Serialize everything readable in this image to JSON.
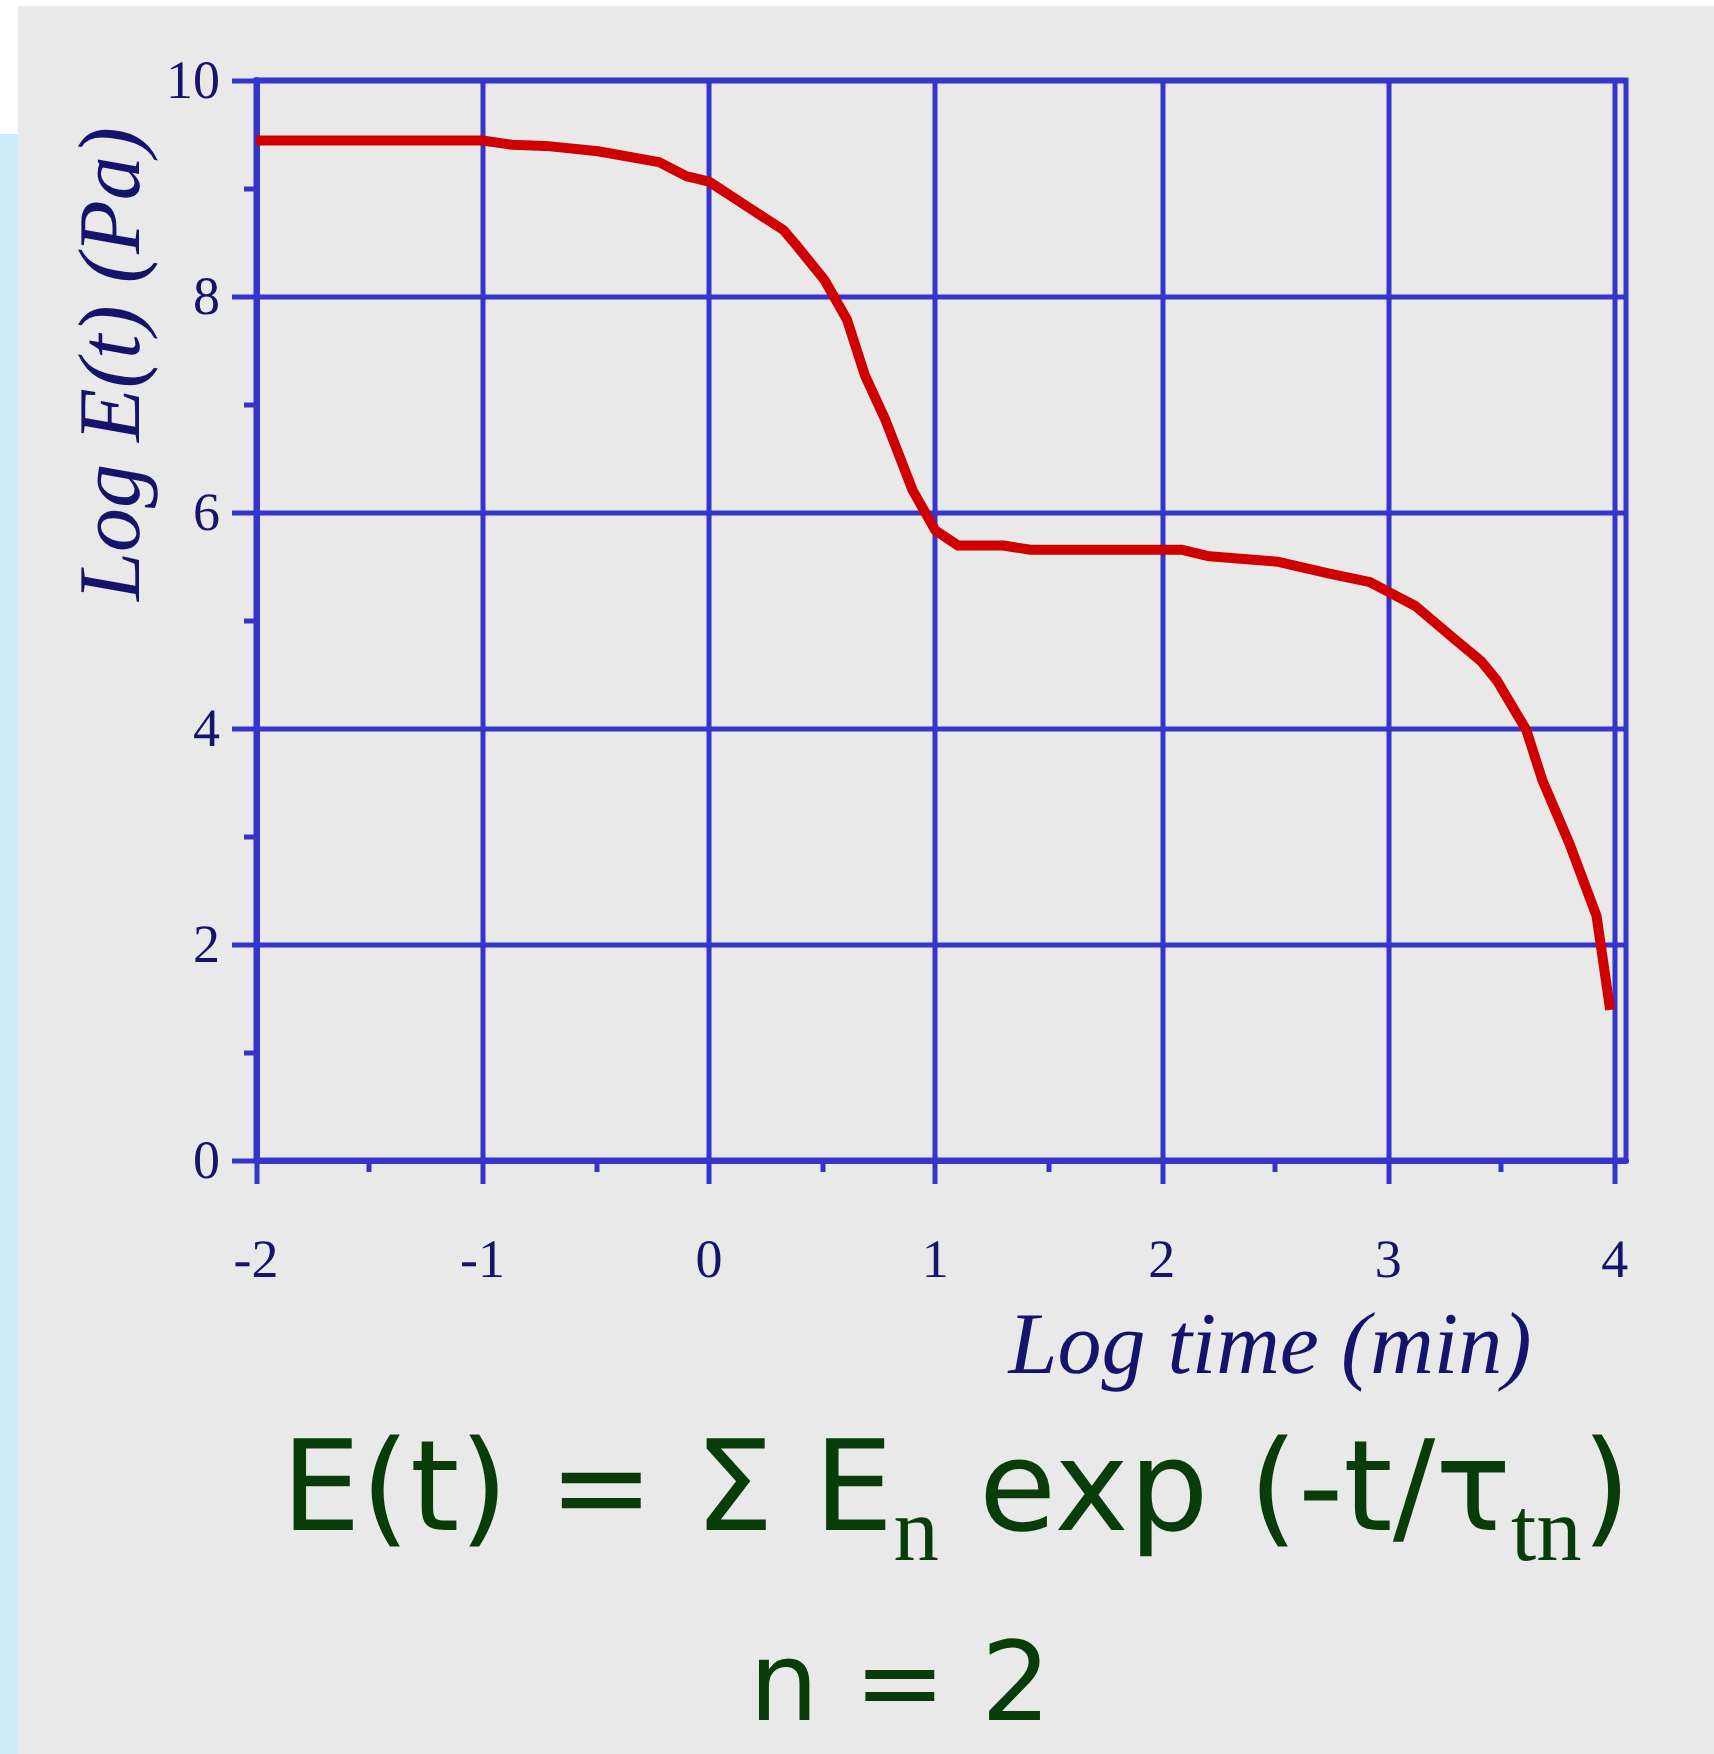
{
  "chart_data": {
    "type": "line",
    "xlabel": "Log time (min)",
    "ylabel": "Log E(t) (Pa)",
    "x": [
      -2,
      -1.5,
      -1,
      -0.87,
      -0.72,
      -0.49,
      -0.22,
      -0.1,
      0,
      0.19,
      0.33,
      0.39,
      0.51,
      0.61,
      0.69,
      0.78,
      0.9,
      1.0,
      1.1,
      1.3,
      1.42,
      2.09,
      2.21,
      2.51,
      2.74,
      2.92,
      3.02,
      3.12,
      3.3,
      3.41,
      3.48,
      3.61,
      3.68,
      3.8,
      3.92,
      3.98
    ],
    "series": [
      {
        "color": "#d00000",
        "values": [
          9.44,
          9.44,
          9.44,
          9.4,
          9.39,
          9.34,
          9.24,
          9.11,
          9.06,
          8.8,
          8.61,
          8.46,
          8.15,
          7.78,
          7.26,
          6.85,
          6.2,
          5.83,
          5.69,
          5.69,
          5.65,
          5.65,
          5.59,
          5.54,
          5.43,
          5.35,
          5.24,
          5.13,
          4.81,
          4.62,
          4.44,
          3.98,
          3.52,
          2.93,
          2.26,
          1.39
        ]
      }
    ],
    "xlim": [
      -2,
      4.05
    ],
    "ylim": [
      0,
      10
    ],
    "xticks": [
      -2,
      {
        "value": -1.5,
        "label": null
      },
      -1,
      {
        "value": -0.5,
        "label": null
      },
      0,
      {
        "value": 0.5,
        "label": null
      },
      1,
      {
        "value": 1.5,
        "label": null
      },
      2,
      {
        "value": 2.5,
        "label": null
      },
      3,
      {
        "value": 3.5,
        "label": null
      },
      4
    ],
    "yticks": [
      0,
      {
        "value": 1,
        "label": null
      },
      2,
      {
        "value": 3,
        "label": null
      },
      4,
      {
        "value": 5,
        "label": null
      },
      6,
      {
        "value": 7,
        "label": null
      },
      8,
      {
        "value": 9,
        "label": null
      },
      10
    ],
    "grid": true,
    "marker": "none",
    "line_style": "solid",
    "annotations": [
      "E(t) = Σ E$_{n}$ exp (-t/τ$_{tn}$)",
      "n = 2"
    ]
  }
}
